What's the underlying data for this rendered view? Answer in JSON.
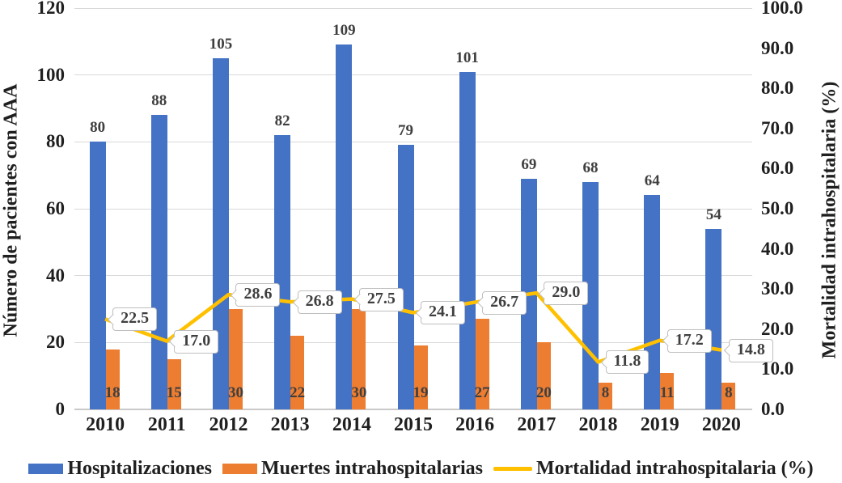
{
  "chart_data": {
    "type": "combo-bar-line",
    "title": "",
    "categories": [
      "2010",
      "2011",
      "2012",
      "2013",
      "2014",
      "2015",
      "2016",
      "2017",
      "2018",
      "2019",
      "2020"
    ],
    "series": [
      {
        "name": "Hospitalizaciones",
        "type": "bar",
        "axis": "left",
        "color": "#4472C4",
        "values": [
          80,
          88,
          105,
          82,
          109,
          79,
          101,
          69,
          68,
          64,
          54
        ],
        "data_labels": [
          "80",
          "88",
          "105",
          "82",
          "109",
          "79",
          "101",
          "69",
          "68",
          "64",
          "54"
        ]
      },
      {
        "name": "Muertes intrahospitalarias",
        "type": "bar",
        "axis": "left",
        "color": "#ED7D31",
        "values": [
          18,
          15,
          30,
          22,
          30,
          19,
          27,
          20,
          8,
          11,
          8
        ],
        "data_labels": [
          "18",
          "15",
          "30",
          "22",
          "30",
          "19",
          "27",
          "20",
          "8",
          "11",
          "8"
        ]
      },
      {
        "name": "Mortalidad intrahospitalaria (%)",
        "type": "line",
        "axis": "right",
        "color": "#FFC000",
        "values": [
          22.5,
          17.0,
          28.6,
          26.8,
          27.5,
          24.1,
          26.7,
          29.0,
          11.8,
          17.2,
          14.8
        ],
        "data_labels": [
          "22.5",
          "17.0",
          "28.6",
          "26.8",
          "27.5",
          "24.1",
          "26.7",
          "29.0",
          "11.8",
          "17.2",
          "14.8"
        ]
      }
    ],
    "left_axis": {
      "label": "Número de pacientes con AAA",
      "min": 0,
      "max": 120,
      "step": 20,
      "ticks": [
        "0",
        "20",
        "40",
        "60",
        "80",
        "100",
        "120"
      ]
    },
    "right_axis": {
      "label": "Mortalidad intrahospitalaria (%)",
      "min": 0,
      "max": 100,
      "step": 10,
      "ticks": [
        "0.0",
        "10.0",
        "20.0",
        "30.0",
        "40.0",
        "50.0",
        "60.0",
        "70.0",
        "80.0",
        "90.0",
        "100.0"
      ]
    },
    "gridlines": "horizontal",
    "legend_position": "bottom"
  },
  "colors": {
    "bar_primary": "#4472C4",
    "bar_secondary": "#ED7D31",
    "line": "#FFC000",
    "gridline": "#D9D9D9",
    "axis_line": "#C9C9C9",
    "tick_text": "#1F1F1F",
    "data_label_text": "#3F3F3F",
    "callout_bg": "#FFFFFF",
    "callout_border": "#BFBFBF"
  }
}
